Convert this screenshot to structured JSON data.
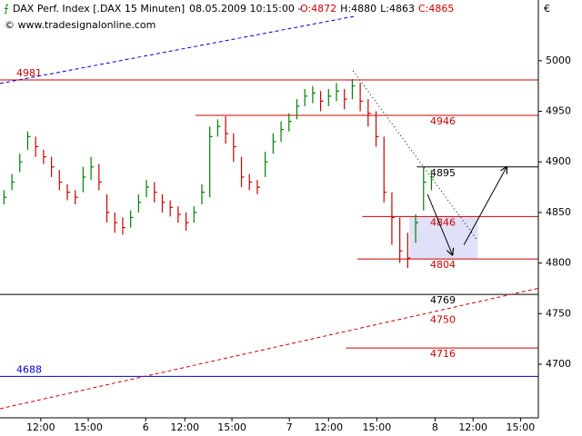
{
  "chart_data": {
    "type": "ohlc",
    "title": "DAX Perf. Index [.DAX  15 Minuten]",
    "timestamp": "08.05.2009 10:15:00 -",
    "quote": [
      "O:4872",
      "H:4880",
      "L:4863",
      "C:4865"
    ],
    "quote_colors": [
      "#cc0000",
      "#000000",
      "#000000",
      "#cc0000"
    ],
    "source": "© www.tradesignalonline.com",
    "currency": "€",
    "x": [
      1,
      3,
      5,
      7,
      9,
      11,
      13,
      15,
      17,
      19,
      21,
      23,
      25,
      27,
      29,
      31,
      33,
      35,
      37,
      39,
      41,
      43,
      45,
      47,
      49,
      51,
      53,
      55,
      57,
      59,
      61,
      63,
      65,
      67,
      69,
      71,
      73,
      75,
      77,
      79,
      81,
      83,
      85,
      87,
      89,
      91,
      93,
      95,
      97,
      99,
      101,
      103,
      105,
      107,
      109
    ],
    "close": [
      4865,
      4880,
      4900,
      4925,
      4915,
      4905,
      4895,
      4880,
      4870,
      4865,
      4885,
      4895,
      4880,
      4850,
      4840,
      4835,
      4845,
      4860,
      4875,
      4870,
      4860,
      4855,
      4848,
      4840,
      4850,
      4870,
      4925,
      4935,
      4928,
      4915,
      4885,
      4880,
      4875,
      4900,
      4920,
      4932,
      4940,
      4955,
      4965,
      4968,
      4960,
      4965,
      4970,
      4962,
      4975,
      4960,
      4948,
      4925,
      4870,
      4845,
      4812,
      4805,
      4840,
      4880,
      4885
    ],
    "high": [
      4872,
      4888,
      4908,
      4930,
      4925,
      4912,
      4905,
      4892,
      4878,
      4872,
      4895,
      4905,
      4898,
      4868,
      4850,
      4845,
      4852,
      4868,
      4882,
      4880,
      4868,
      4862,
      4856,
      4850,
      4856,
      4878,
      4935,
      4942,
      4945,
      4928,
      4905,
      4888,
      4882,
      4910,
      4928,
      4940,
      4948,
      4962,
      4972,
      4975,
      4970,
      4972,
      4978,
      4972,
      4982,
      4978,
      4962,
      4950,
      4925,
      4870,
      4845,
      4830,
      4848,
      4895,
      4892
    ],
    "low": [
      4858,
      4872,
      4890,
      4912,
      4905,
      4898,
      4885,
      4872,
      4862,
      4858,
      4870,
      4882,
      4872,
      4840,
      4830,
      4828,
      4835,
      4850,
      4865,
      4860,
      4850,
      4846,
      4840,
      4832,
      4840,
      4858,
      4865,
      4925,
      4918,
      4900,
      4875,
      4872,
      4868,
      4885,
      4908,
      4920,
      4930,
      4942,
      4955,
      4958,
      4950,
      4955,
      4960,
      4952,
      4962,
      4950,
      4935,
      4915,
      4860,
      4818,
      4800,
      4795,
      4820,
      4852,
      4872
    ],
    "up_color": "#008000",
    "down_color": "#cc0000",
    "xlim": [
      0,
      136
    ],
    "ylim": [
      4647,
      5060
    ],
    "yticks": [
      4700,
      4750,
      4800,
      4850,
      4900,
      4950,
      5000
    ],
    "xticks": [
      {
        "value": 10.3,
        "label": "12:00"
      },
      {
        "value": 22.3,
        "label": "15:00"
      },
      {
        "value": 36.8,
        "label": "6"
      },
      {
        "value": 46.7,
        "label": "12:00"
      },
      {
        "value": 58.6,
        "label": "15:00"
      },
      {
        "value": 73.1,
        "label": "7"
      },
      {
        "value": 83,
        "label": "12:00"
      },
      {
        "value": 95.2,
        "label": "15:00"
      },
      {
        "value": 109.9,
        "label": "8"
      },
      {
        "value": 119.5,
        "label": "12:00"
      },
      {
        "value": 131.5,
        "label": "15:00"
      }
    ],
    "levels": [
      {
        "value": 4981,
        "color": "#cc0000",
        "from": 0,
        "line": true,
        "label_side": "left"
      },
      {
        "value": 4946,
        "color": "#cc0000",
        "from": 49.4,
        "line": true,
        "label_side": "right"
      },
      {
        "value": 4895,
        "color": "#000000",
        "from": 105.3,
        "line": true,
        "label_side": "right"
      },
      {
        "value": 4846,
        "color": "#cc0000",
        "from": 91.5,
        "line": true,
        "label_side": "right"
      },
      {
        "value": 4804,
        "color": "#cc0000",
        "from": 90.3,
        "line": true,
        "label_side": "right"
      },
      {
        "value": 4769,
        "color": "#000000",
        "from": 0,
        "line": true,
        "label_side": "right"
      },
      {
        "value": 4750,
        "color": "#cc0000",
        "from": 0,
        "line": false,
        "label_side": "right"
      },
      {
        "value": 4716,
        "color": "#cc0000",
        "from": 87.4,
        "line": true,
        "label_side": "right"
      },
      {
        "value": 4688,
        "color": "#0000cc",
        "from": 0,
        "line": true,
        "label_side": "left"
      }
    ],
    "trendlines": [
      {
        "x": [
          0,
          89.7
        ],
        "y": [
          4977.5,
          5044
        ],
        "color": "#0000cc",
        "dash": "4,3"
      },
      {
        "x": [
          0,
          136
        ],
        "y": [
          4656,
          4775
        ],
        "color": "#cc0000",
        "dash": "4,3"
      },
      {
        "x": [
          89.2,
          120.7
        ],
        "y": [
          4990,
          4822
        ],
        "color": "#000000",
        "dash": "1,3"
      }
    ],
    "zone": {
      "x": [
        103.4,
        120.7
      ],
      "y": [
        4804,
        4846
      ],
      "color": "#e0e0f8"
    },
    "arrows": [
      {
        "x": [
          108,
          114.3
        ],
        "y": [
          4868,
          4808
        ],
        "color": "#000000"
      },
      {
        "x": [
          117.2,
          128
        ],
        "y": [
          4818,
          4895
        ],
        "color": "#000000"
      }
    ]
  }
}
